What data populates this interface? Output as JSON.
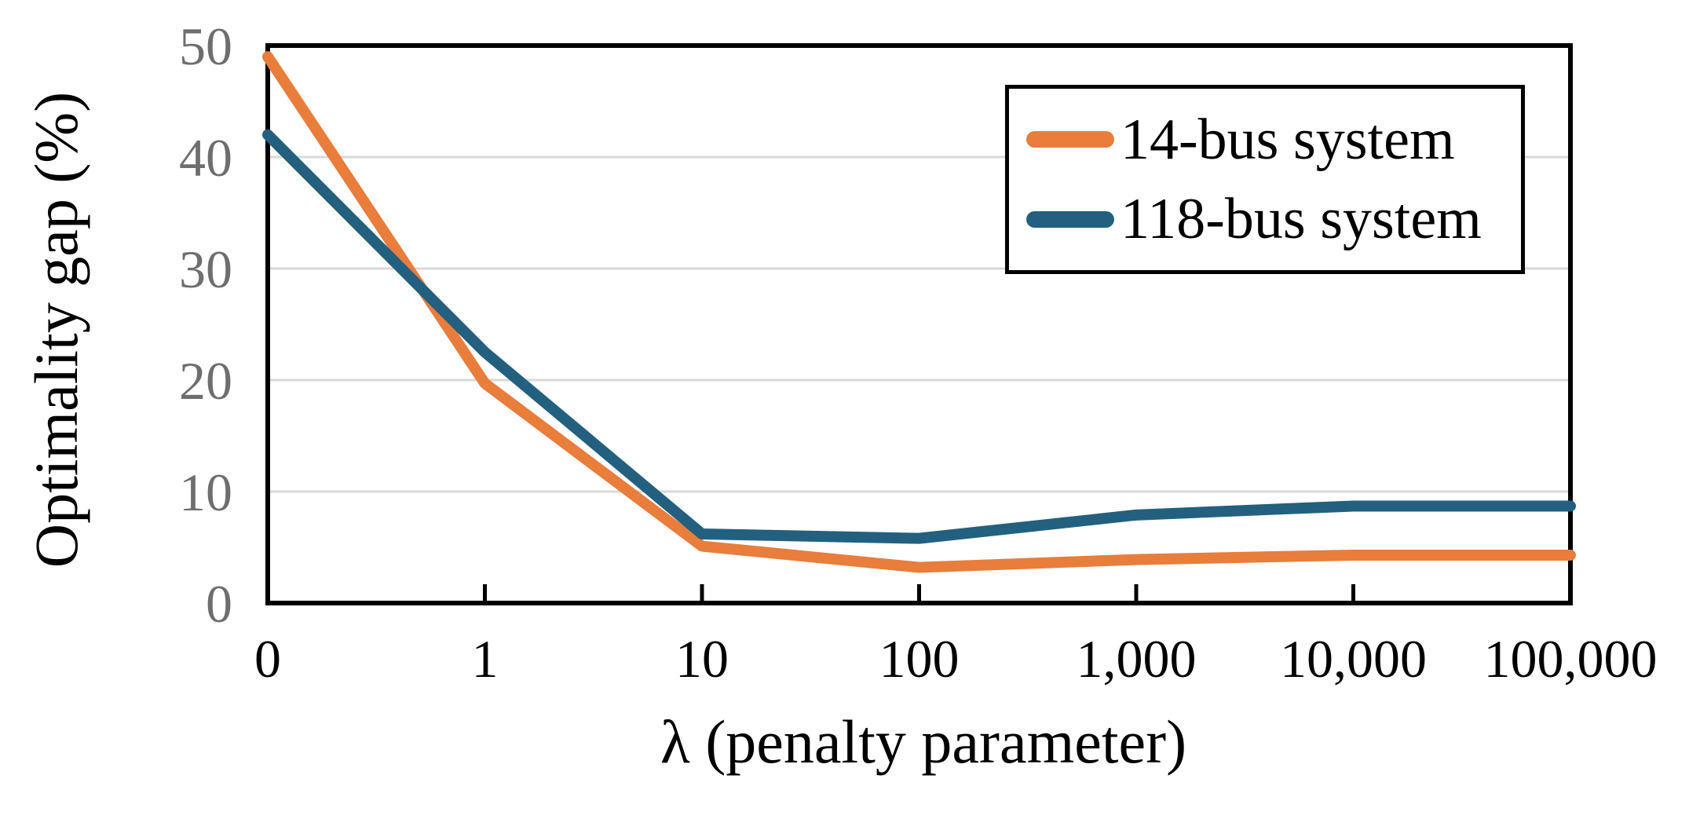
{
  "chart_data": {
    "type": "line",
    "title": "",
    "xlabel": "λ (penalty parameter)",
    "ylabel": "Optimality gap (%)",
    "categories": [
      "0",
      "1",
      "10",
      "100",
      "1,000",
      "10,000",
      "100,000"
    ],
    "series": [
      {
        "name": "14-bus system",
        "color": "#E87D3C",
        "values": [
          49,
          19.7,
          5.1,
          3.2,
          3.9,
          4.3,
          4.3
        ]
      },
      {
        "name": "118-bus system",
        "color": "#23607F",
        "values": [
          42,
          22.5,
          6.2,
          5.8,
          7.9,
          8.7,
          8.7
        ]
      }
    ],
    "y_ticks": [
      0,
      10,
      20,
      30,
      40,
      50
    ],
    "ylim": [
      0,
      50
    ],
    "grid": "horizontal",
    "legend_position": "top-right",
    "x_scale_note": "categorical axis, log-spaced penalty values"
  },
  "colors": {
    "axis": "#000000",
    "grid": "#D9D9D9",
    "y_tick_label": "#6E6E6E",
    "x_tick_label": "#000000"
  }
}
